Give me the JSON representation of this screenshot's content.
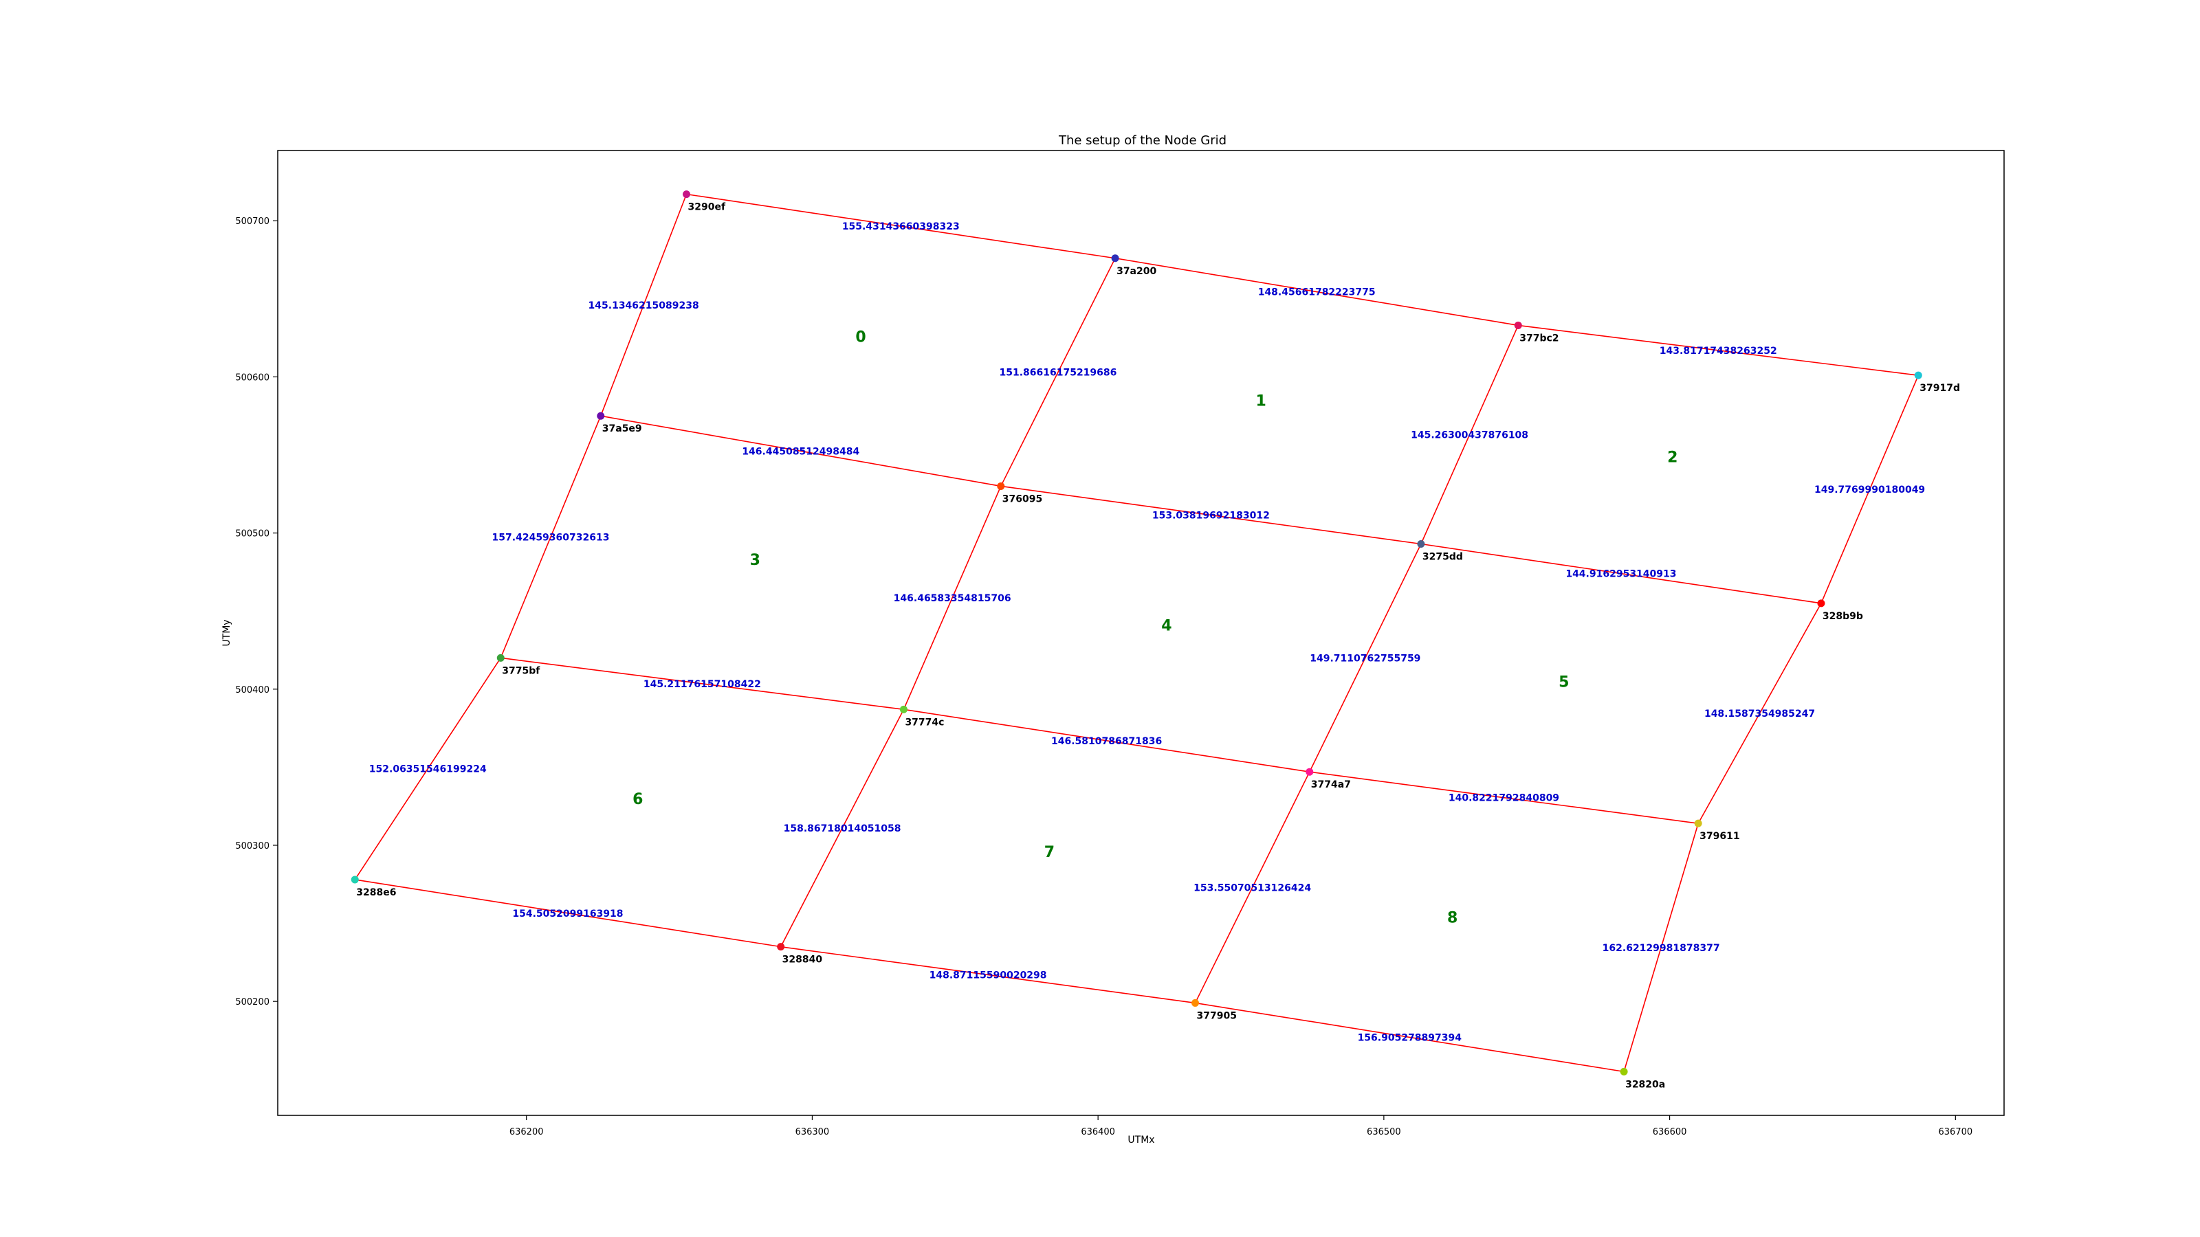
{
  "chart_data": {
    "type": "scatter",
    "title": "The setup of the Node Grid",
    "xlabel": "UTMx",
    "ylabel": "UTMy",
    "xlim": [
      636113,
      636717
    ],
    "ylim": [
      500127,
      500745
    ],
    "xticks": [
      636200,
      636300,
      636400,
      636500,
      636600,
      636700
    ],
    "yticks": [
      500200,
      500300,
      500400,
      500500,
      500600,
      500700
    ],
    "grid": false,
    "edge_color": "#ff0000",
    "edge_label_color": "#0000cc",
    "cell_label_color": "#007700",
    "nodes": [
      {
        "id": "3290ef",
        "x": 636256,
        "y": 500717,
        "color": "#c71585"
      },
      {
        "id": "37a200",
        "x": 636406,
        "y": 500676,
        "color": "#2e2eb8"
      },
      {
        "id": "377bc2",
        "x": 636547,
        "y": 500633,
        "color": "#e0115f"
      },
      {
        "id": "37917d",
        "x": 636687,
        "y": 500601,
        "color": "#1cc6d6"
      },
      {
        "id": "37a5e9",
        "x": 636226,
        "y": 500575,
        "color": "#6a0dad"
      },
      {
        "id": "376095",
        "x": 636366,
        "y": 500530,
        "color": "#ff4500"
      },
      {
        "id": "3275dd",
        "x": 636513,
        "y": 500493,
        "color": "#4b5f8a"
      },
      {
        "id": "328b9b",
        "x": 636653,
        "y": 500455,
        "color": "#ff0000"
      },
      {
        "id": "3775bf",
        "x": 636191,
        "y": 500420,
        "color": "#3aa33a"
      },
      {
        "id": "37774c",
        "x": 636332,
        "y": 500387,
        "color": "#66cc33"
      },
      {
        "id": "3774a7",
        "x": 636474,
        "y": 500347,
        "color": "#ff1493"
      },
      {
        "id": "379611",
        "x": 636610,
        "y": 500314,
        "color": "#d4c21a"
      },
      {
        "id": "3288e6",
        "x": 636140,
        "y": 500278,
        "color": "#20d0b0"
      },
      {
        "id": "328840",
        "x": 636289,
        "y": 500235,
        "color": "#ee1122"
      },
      {
        "id": "377905",
        "x": 636434,
        "y": 500199,
        "color": "#ff8c00"
      },
      {
        "id": "32820a",
        "x": 636584,
        "y": 500155,
        "color": "#99cc00"
      }
    ],
    "edges": [
      {
        "from": "3290ef",
        "to": "37a200",
        "length": "155.43143660398323"
      },
      {
        "from": "37a200",
        "to": "377bc2",
        "length": "148.45661782223775"
      },
      {
        "from": "377bc2",
        "to": "37917d",
        "length": "143.81717438263252"
      },
      {
        "from": "37a5e9",
        "to": "376095",
        "length": "146.44508512498484"
      },
      {
        "from": "376095",
        "to": "3275dd",
        "length": "153.03819692183012"
      },
      {
        "from": "3275dd",
        "to": "328b9b",
        "length": "144.9162953140913"
      },
      {
        "from": "3775bf",
        "to": "37774c",
        "length": "145.21176157108422"
      },
      {
        "from": "37774c",
        "to": "3774a7",
        "length": "146.5810786871836"
      },
      {
        "from": "3774a7",
        "to": "379611",
        "length": "140.8221792840809"
      },
      {
        "from": "3288e6",
        "to": "328840",
        "length": "154.5052099163918"
      },
      {
        "from": "328840",
        "to": "377905",
        "length": "148.87115590020298"
      },
      {
        "from": "377905",
        "to": "32820a",
        "length": "156.905278897394"
      },
      {
        "from": "3290ef",
        "to": "37a5e9",
        "length": "145.1346215089238"
      },
      {
        "from": "37a5e9",
        "to": "3775bf",
        "length": "157.42459360732613"
      },
      {
        "from": "3775bf",
        "to": "3288e6",
        "length": "152.06351546199224"
      },
      {
        "from": "37a200",
        "to": "376095",
        "length": "151.86616175219686"
      },
      {
        "from": "376095",
        "to": "37774c",
        "length": "146.46583354815706"
      },
      {
        "from": "37774c",
        "to": "328840",
        "length": "158.86718014051058"
      },
      {
        "from": "377bc2",
        "to": "3275dd",
        "length": "145.26300437876108"
      },
      {
        "from": "3275dd",
        "to": "3774a7",
        "length": "149.7110762755759"
      },
      {
        "from": "3774a7",
        "to": "377905",
        "length": "153.55070513126424"
      },
      {
        "from": "37917d",
        "to": "328b9b",
        "length": "149.7769990180049"
      },
      {
        "from": "328b9b",
        "to": "379611",
        "length": "148.1587354985247"
      },
      {
        "from": "379611",
        "to": "32820a",
        "length": "162.62129981878377"
      }
    ],
    "cells": [
      {
        "label": "0",
        "x": 636317,
        "y": 500626
      },
      {
        "label": "1",
        "x": 636457,
        "y": 500585
      },
      {
        "label": "2",
        "x": 636601,
        "y": 500549
      },
      {
        "label": "3",
        "x": 636280,
        "y": 500483
      },
      {
        "label": "4",
        "x": 636424,
        "y": 500441
      },
      {
        "label": "5",
        "x": 636563,
        "y": 500405
      },
      {
        "label": "6",
        "x": 636239,
        "y": 500330
      },
      {
        "label": "7",
        "x": 636383,
        "y": 500296
      },
      {
        "label": "8",
        "x": 636524,
        "y": 500254
      }
    ]
  }
}
